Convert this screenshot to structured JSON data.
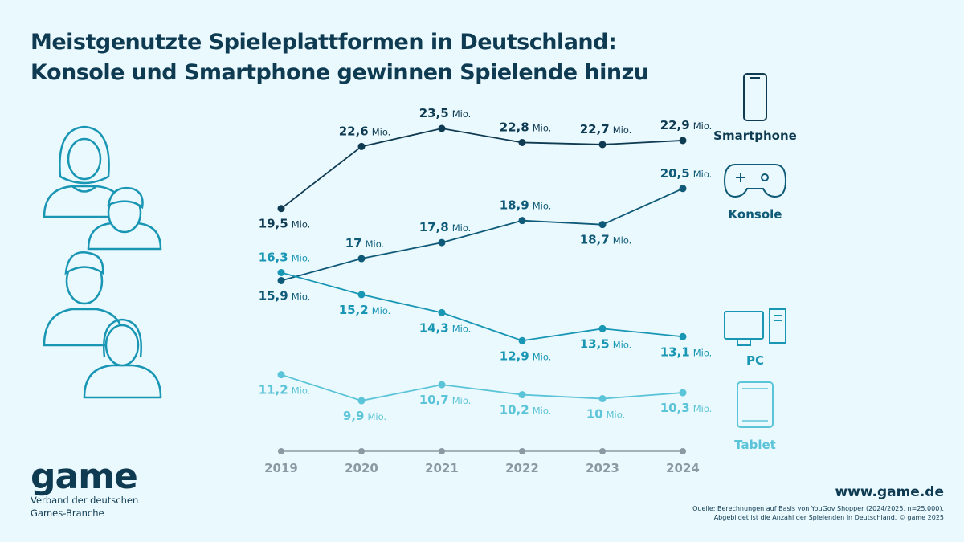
{
  "title_line1": "Meistgenutzte Spieleplattformen in Deutschland:",
  "title_line2": "Konsole und Smartphone gewinnen Spielende hinzu",
  "logo": "game",
  "tagline_line1": "Verband der deutschen",
  "tagline_line2": "Games-Branche",
  "website": "www.game.de",
  "source_line1": "Quelle: Berechnungen auf Basis von YouGov Shopper (2024/2025, n=25.000).",
  "source_line2": "Abgebildet ist die Anzahl der Spielenden in Deutschland. © game 2025",
  "chart_data": {
    "type": "line",
    "title": "",
    "xlabel": "",
    "ylabel": "",
    "unit": "Mio.",
    "categories": [
      "2019",
      "2020",
      "2021",
      "2022",
      "2023",
      "2024"
    ],
    "grid": false,
    "legend": "right",
    "series": [
      {
        "name": "Smartphone",
        "icon": "smartphone-icon",
        "color": "#0e3a52",
        "values": [
          19.5,
          22.6,
          23.5,
          22.8,
          22.7,
          22.9
        ],
        "labels": [
          "19,5",
          "22,6",
          "23,5",
          "22,8",
          "22,7",
          "22,9"
        ]
      },
      {
        "name": "Konsole",
        "icon": "gamepad-icon",
        "color": "#0f5a78",
        "values": [
          15.9,
          17,
          17.8,
          18.9,
          18.7,
          20.5
        ],
        "labels": [
          "15,9",
          "17",
          "17,8",
          "18,9",
          "18,7",
          "20,5"
        ]
      },
      {
        "name": "PC",
        "icon": "desktop-pc-icon",
        "color": "#1896b4",
        "values": [
          16.3,
          15.2,
          14.3,
          12.9,
          13.5,
          13.1
        ],
        "labels": [
          "16,3",
          "15,2",
          "14,3",
          "12,9",
          "13,5",
          "13,1"
        ]
      },
      {
        "name": "Tablet",
        "icon": "tablet-icon",
        "color": "#5cc4d8",
        "values": [
          11.2,
          9.9,
          10.7,
          10.2,
          10,
          10.3
        ],
        "labels": [
          "11,2",
          "9,9",
          "10,7",
          "10,2",
          "10",
          "10,3"
        ]
      }
    ],
    "axis_color": "#8a9aa3"
  }
}
